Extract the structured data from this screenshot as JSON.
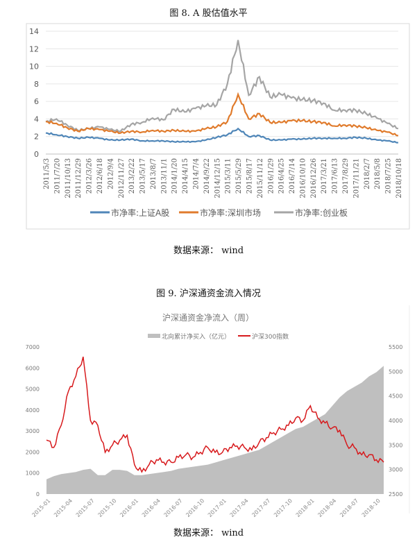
{
  "figure8": {
    "caption": "图 8. A 股估值水平",
    "source": "数据来源： wind"
  },
  "figure9": {
    "caption": "图 9. 沪深通资金流入情况",
    "source": "数据来源： wind"
  },
  "chart_data": [
    {
      "type": "line",
      "title": "",
      "ylim": [
        0,
        14
      ],
      "yticks": [
        0,
        2,
        4,
        6,
        8,
        10,
        12,
        14
      ],
      "grid": true,
      "legend_position": "bottom",
      "categories": [
        "2011/5/3",
        "2011/7/20",
        "2011/10/13",
        "2011/12/29",
        "2012/3/26",
        "2012/6/18",
        "2012/9/4",
        "2012/11/27",
        "2013/2/22",
        "2013/5/17",
        "2013/8/7",
        "2013/11/1",
        "2014/1/20",
        "2014/4/15",
        "2014/7/4",
        "2014/9/22",
        "2014/12/15",
        "2015/3/11",
        "2015/5/29",
        "2015/8/17",
        "2015/11/12",
        "2016/1/29",
        "2016/4/25",
        "2016/7/14",
        "2016/10/10",
        "2016/12/26",
        "2017/3/21",
        "2017/6/13",
        "2017/8/29",
        "2017/11/21",
        "2018/2/7",
        "2018/5/8",
        "2018/7/25",
        "2018/10/18"
      ],
      "series": [
        {
          "name": "市净率:上证A股",
          "color": "#4f86b8",
          "values": [
            2.4,
            2.2,
            2.0,
            1.8,
            1.9,
            1.8,
            1.6,
            1.6,
            1.7,
            1.5,
            1.5,
            1.5,
            1.4,
            1.4,
            1.4,
            1.6,
            1.9,
            2.2,
            2.9,
            2.0,
            2.1,
            1.6,
            1.6,
            1.7,
            1.7,
            1.8,
            1.8,
            1.8,
            1.8,
            1.9,
            1.8,
            1.6,
            1.5,
            1.3
          ]
        },
        {
          "name": "市净率:深圳市场",
          "color": "#e07b2c",
          "values": [
            3.7,
            3.5,
            3.0,
            2.6,
            2.9,
            2.8,
            2.6,
            2.4,
            2.6,
            2.5,
            2.7,
            2.6,
            2.7,
            2.6,
            2.6,
            2.9,
            3.1,
            3.7,
            6.8,
            4.0,
            4.6,
            3.6,
            3.6,
            3.8,
            3.8,
            3.7,
            3.6,
            3.2,
            3.3,
            3.2,
            3.0,
            2.7,
            2.5,
            2.1
          ]
        },
        {
          "name": "市净率:创业板",
          "color": "#a5a5a5",
          "values": [
            3.7,
            4.0,
            3.3,
            2.7,
            2.9,
            3.1,
            2.8,
            2.6,
            3.4,
            3.6,
            4.1,
            3.9,
            5.1,
            4.8,
            5.2,
            5.5,
            5.6,
            8.0,
            13.0,
            6.7,
            8.8,
            6.5,
            6.8,
            6.4,
            6.2,
            6.1,
            5.8,
            5.0,
            5.0,
            5.0,
            4.6,
            4.1,
            3.5,
            2.9
          ]
        }
      ]
    },
    {
      "type": "area",
      "title": "沪深通资金净流入（周）",
      "legend_position": "top",
      "ylim_left": [
        0,
        7000
      ],
      "yticks_left": [
        0,
        1000,
        2000,
        3000,
        4000,
        5000,
        6000,
        7000
      ],
      "ylim_right": [
        2500,
        5500
      ],
      "yticks_right": [
        2500,
        3000,
        3500,
        4000,
        4500,
        5000,
        5500
      ],
      "xticks": [
        "2015-01",
        "2015-04",
        "2015-07",
        "2015-10",
        "2016-01",
        "2016-04",
        "2016-07",
        "2016-10",
        "2017-01",
        "2017-04",
        "2017-07",
        "2017-10",
        "2018-01",
        "2018-04",
        "2018-07",
        "2018-10"
      ],
      "x_start": "2015-01",
      "x_end": "2018-11",
      "series": [
        {
          "name": "北向累计净买入（亿元）",
          "axis": "left",
          "kind": "area",
          "color": "#bfbfbf",
          "values": [
            700,
            850,
            950,
            1000,
            1050,
            1150,
            1200,
            900,
            900,
            1150,
            1150,
            1100,
            900,
            900,
            950,
            1000,
            1050,
            1100,
            1200,
            1250,
            1300,
            1350,
            1400,
            1500,
            1600,
            1700,
            1800,
            1900,
            2000,
            2100,
            2300,
            2500,
            2700,
            2900,
            3100,
            3200,
            3400,
            3600,
            3800,
            4200,
            4600,
            4900,
            5100,
            5300,
            5600,
            5800,
            6100
          ]
        },
        {
          "name": "沪深300指数",
          "axis": "right",
          "kind": "line",
          "color": "#d7191c",
          "values": [
            3600,
            3450,
            3900,
            4600,
            4900,
            5300,
            4000,
            3900,
            3350,
            3500,
            3600,
            3700,
            3100,
            2950,
            3100,
            3200,
            3150,
            3150,
            3250,
            3300,
            3250,
            3350,
            3450,
            3350,
            3350,
            3450,
            3480,
            3450,
            3400,
            3550,
            3650,
            3750,
            3820,
            3900,
            4050,
            4000,
            4300,
            4050,
            3950,
            3850,
            3800,
            3500,
            3450,
            3300,
            3300,
            3200,
            3150
          ]
        }
      ]
    }
  ]
}
